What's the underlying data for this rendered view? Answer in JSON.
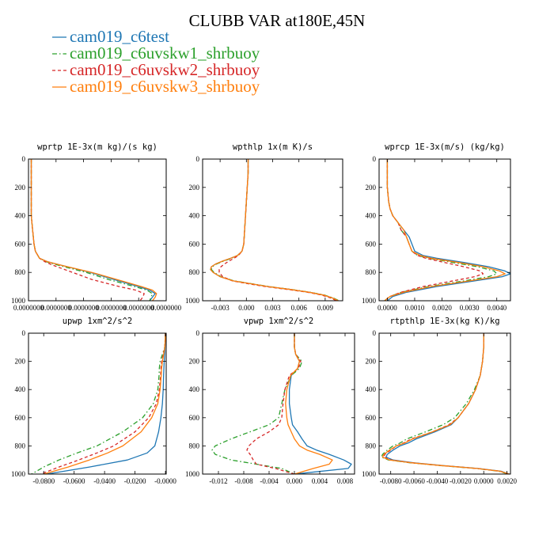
{
  "title": "CLUBB VAR at180E,45N",
  "legend": [
    {
      "label": "cam019_c6test",
      "color": "#1f77b4",
      "dash": "solid"
    },
    {
      "label": "cam019_c6uvskw1_shrbuoy",
      "color": "#2ca02c",
      "dash": "dashdot"
    },
    {
      "label": "cam019_c6uvskw2_shrbuoy",
      "color": "#d62728",
      "dash": "dash"
    },
    {
      "label": "cam019_c6uvskw3_shrbuoy",
      "color": "#ff7f0e",
      "dash": "solid"
    }
  ],
  "chart_data": [
    {
      "type": "line",
      "title": "wprtp  1E-3x(m kg)/(s kg)",
      "xlim": [
        0.0,
        1e-07
      ],
      "ylim": [
        1000,
        0
      ],
      "xticks": [
        {
          "v": 0.0,
          "label": "0.0000000"
        },
        {
          "v": 2e-08,
          "label": "0.0000000"
        },
        {
          "v": 4e-08,
          "label": "0.0000000"
        },
        {
          "v": 6e-08,
          "label": "0.0000000"
        },
        {
          "v": 8e-08,
          "label": "0.0000000"
        },
        {
          "v": 1e-07,
          "label": "0.0000000"
        }
      ],
      "yticks": [
        0,
        200,
        400,
        600,
        800,
        1000
      ],
      "y": [
        0,
        100,
        200,
        300,
        400,
        500,
        600,
        650,
        700,
        725,
        750,
        800,
        850,
        900,
        925,
        950,
        975,
        1000
      ],
      "series": [
        {
          "values": [
            2e-09,
            2e-09,
            2e-09,
            2e-09,
            2e-09,
            3e-09,
            4e-09,
            5e-09,
            8e-09,
            1.4e-08,
            2.4e-08,
            4.5e-08,
            6.2e-08,
            8e-08,
            8.8e-08,
            9.2e-08,
            9e-08,
            8.8e-08
          ]
        },
        {
          "values": [
            2e-09,
            2e-09,
            2e-09,
            2e-09,
            2e-09,
            3e-09,
            4e-09,
            5e-09,
            8e-09,
            1.3e-08,
            2.2e-08,
            4.2e-08,
            5.8e-08,
            7.7e-08,
            8.6e-08,
            9e-08,
            8.9e-08,
            8.8e-08
          ]
        },
        {
          "values": [
            2e-09,
            2e-09,
            2e-09,
            2e-09,
            2e-09,
            3e-09,
            4e-09,
            5e-09,
            8e-09,
            1.2e-08,
            1.8e-08,
            3.2e-08,
            4.6e-08,
            6.6e-08,
            7.8e-08,
            8.4e-08,
            8.3e-08,
            8.1e-08
          ]
        },
        {
          "values": [
            2e-09,
            2e-09,
            2e-09,
            2e-09,
            2e-09,
            3e-09,
            4e-09,
            5e-09,
            8e-09,
            1.4e-08,
            2.4e-08,
            4.6e-08,
            6.4e-08,
            8.2e-08,
            9e-08,
            9.3e-08,
            9.2e-08,
            9e-08
          ]
        }
      ]
    },
    {
      "type": "line",
      "title": "wpthlp  1x(m K)/s",
      "xlim": [
        -0.005,
        0.011
      ],
      "ylim": [
        1000,
        0
      ],
      "xticks": [
        {
          "v": -0.003,
          "label": "-0.003"
        },
        {
          "v": 0.0,
          "label": "0.000"
        },
        {
          "v": 0.003,
          "label": "0.003"
        },
        {
          "v": 0.006,
          "label": "0.006"
        },
        {
          "v": 0.009,
          "label": "0.009"
        }
      ],
      "yticks": [
        0,
        200,
        400,
        600,
        800,
        1000
      ],
      "y": [
        0,
        100,
        200,
        300,
        400,
        500,
        600,
        650,
        680,
        700,
        720,
        740,
        760,
        780,
        800,
        830,
        860,
        880,
        900,
        920,
        940,
        960,
        980,
        1000
      ],
      "series": [
        {
          "values": [
            0.0002,
            0.0002,
            0.0001,
            0.0,
            -0.0001,
            -0.0002,
            -0.0003,
            -0.0005,
            -0.001,
            -0.0018,
            -0.0027,
            -0.0035,
            -0.004,
            -0.0041,
            -0.0038,
            -0.003,
            -0.0015,
            0.0005,
            0.0025,
            0.005,
            0.0072,
            0.0088,
            0.0098,
            0.0105
          ]
        },
        {
          "values": [
            0.0002,
            0.0002,
            0.0001,
            0.0,
            -0.0001,
            -0.0002,
            -0.0003,
            -0.0005,
            -0.001,
            -0.0017,
            -0.0026,
            -0.0034,
            -0.0039,
            -0.004,
            -0.0037,
            -0.0029,
            -0.0014,
            0.0006,
            0.0026,
            0.0051,
            0.0073,
            0.0089,
            0.0099,
            0.0106
          ]
        },
        {
          "values": [
            0.0002,
            0.0002,
            0.0001,
            0.0,
            -0.0001,
            -0.0002,
            -0.0003,
            -0.0005,
            -0.0009,
            -0.0014,
            -0.002,
            -0.0025,
            -0.0029,
            -0.0031,
            -0.0031,
            -0.0027,
            -0.0016,
            0.0002,
            0.0022,
            0.0047,
            0.007,
            0.0086,
            0.0096,
            0.0103
          ]
        },
        {
          "values": [
            0.0002,
            0.0002,
            0.0001,
            0.0,
            -0.0001,
            -0.0002,
            -0.0003,
            -0.0005,
            -0.001,
            -0.0018,
            -0.0027,
            -0.0035,
            -0.004,
            -0.0041,
            -0.0038,
            -0.003,
            -0.0015,
            0.0005,
            0.0025,
            0.005,
            0.0072,
            0.0088,
            0.0098,
            0.0105
          ]
        }
      ]
    },
    {
      "type": "line",
      "title": "wprcp  1E-3x(m/s) (kg/kg)",
      "xlim": [
        -0.0003,
        0.0045
      ],
      "ylim": [
        1000,
        0
      ],
      "xticks": [
        {
          "v": 0.0,
          "label": "0.0000"
        },
        {
          "v": 0.001,
          "label": "0.0010"
        },
        {
          "v": 0.002,
          "label": "0.0020"
        },
        {
          "v": 0.003,
          "label": "0.0030"
        },
        {
          "v": 0.004,
          "label": "0.0040"
        }
      ],
      "yticks": [
        0,
        200,
        400,
        600,
        800,
        1000
      ],
      "y": [
        0,
        100,
        200,
        300,
        350,
        400,
        450,
        500,
        550,
        600,
        650,
        680,
        700,
        730,
        760,
        790,
        810,
        830,
        860,
        900,
        940,
        970,
        1000
      ],
      "series": [
        {
          "values": [
            0.0,
            0.0,
            0.0,
            5e-05,
            0.0001,
            0.0002,
            0.0004,
            0.0006,
            0.0008,
            0.0009,
            0.001,
            0.0013,
            0.0018,
            0.0028,
            0.0037,
            0.0043,
            0.0045,
            0.0042,
            0.0032,
            0.0018,
            0.0007,
            0.0002,
            0.0
          ]
        },
        {
          "values": [
            0.0,
            0.0,
            0.0,
            5e-05,
            0.0001,
            0.0002,
            0.0004,
            0.0005,
            0.0007,
            0.0008,
            0.0009,
            0.0011,
            0.0015,
            0.0024,
            0.0033,
            0.0039,
            0.004,
            0.0037,
            0.0028,
            0.0015,
            0.0005,
            0.0001,
            -0.0001
          ]
        },
        {
          "values": [
            0.0,
            0.0,
            0.0,
            5e-05,
            0.0001,
            0.0002,
            0.0004,
            0.0005,
            0.0007,
            0.0008,
            0.0009,
            0.0011,
            0.0014,
            0.0021,
            0.0028,
            0.0034,
            0.0035,
            0.0032,
            0.0024,
            0.0013,
            0.0005,
            0.0001,
            -0.0001
          ]
        },
        {
          "values": [
            0.0,
            0.0,
            0.0,
            5e-05,
            0.0001,
            0.0002,
            0.0004,
            0.0006,
            0.0007,
            0.0008,
            0.0009,
            0.0012,
            0.0016,
            0.0026,
            0.0035,
            0.0041,
            0.0043,
            0.004,
            0.003,
            0.0016,
            0.0006,
            0.0001,
            -0.0001
          ]
        }
      ]
    },
    {
      "type": "line",
      "title": "upwp  1xm^2/s^2",
      "xlim": [
        -0.09,
        0.0005
      ],
      "ylim": [
        1000,
        0
      ],
      "xticks": [
        {
          "v": -0.08,
          "label": "-0.0800"
        },
        {
          "v": -0.06,
          "label": "-0.0600"
        },
        {
          "v": -0.04,
          "label": "-0.0400"
        },
        {
          "v": -0.02,
          "label": "-0.0200"
        },
        {
          "v": 0.0,
          "label": "-0.0000"
        }
      ],
      "yticks": [
        0,
        200,
        400,
        600,
        800,
        1000
      ],
      "y": [
        0,
        100,
        200,
        250,
        300,
        400,
        500,
        600,
        700,
        800,
        850,
        900,
        950,
        1000
      ],
      "series": [
        {
          "values": [
            0.0,
            -0.0003,
            -0.0008,
            -0.001,
            -0.0012,
            -0.0015,
            -0.002,
            -0.003,
            -0.0045,
            -0.007,
            -0.012,
            -0.025,
            -0.05,
            -0.078
          ]
        },
        {
          "values": [
            0.0,
            -0.0005,
            -0.0035,
            -0.004,
            -0.0042,
            -0.005,
            -0.008,
            -0.015,
            -0.028,
            -0.045,
            -0.058,
            -0.07,
            -0.08,
            -0.088
          ]
        },
        {
          "values": [
            0.0,
            -0.0004,
            -0.0025,
            -0.003,
            -0.0032,
            -0.004,
            -0.006,
            -0.011,
            -0.02,
            -0.034,
            -0.045,
            -0.057,
            -0.07,
            -0.082
          ]
        },
        {
          "values": [
            0.0,
            -0.0004,
            -0.002,
            -0.0025,
            -0.0028,
            -0.0035,
            -0.005,
            -0.009,
            -0.016,
            -0.028,
            -0.038,
            -0.05,
            -0.064,
            -0.08
          ]
        }
      ]
    },
    {
      "type": "line",
      "title": "vpwp  1xm^2/s^2",
      "xlim": [
        -0.0145,
        0.0095
      ],
      "ylim": [
        1000,
        0
      ],
      "xticks": [
        {
          "v": -0.012,
          "label": "-0.012"
        },
        {
          "v": -0.008,
          "label": "-0.008"
        },
        {
          "v": -0.004,
          "label": "-0.004"
        },
        {
          "v": 0.0,
          "label": "0.000"
        },
        {
          "v": 0.004,
          "label": "0.004"
        },
        {
          "v": 0.008,
          "label": "0.008"
        }
      ],
      "yticks": [
        0,
        200,
        400,
        600,
        800,
        1000
      ],
      "y": [
        0,
        100,
        150,
        200,
        250,
        300,
        400,
        500,
        600,
        650,
        700,
        750,
        800,
        830,
        860,
        900,
        930,
        960,
        1000
      ],
      "series": [
        {
          "values": [
            0.0,
            0.0,
            0.0002,
            0.0008,
            0.0005,
            -0.0005,
            -0.0008,
            -0.0008,
            -0.0005,
            -0.0003,
            0.0005,
            0.0012,
            0.002,
            0.0035,
            0.0055,
            0.0078,
            0.009,
            0.0085,
            0.0
          ]
        },
        {
          "values": [
            0.0,
            0.0,
            0.0002,
            0.0012,
            0.0008,
            -0.0005,
            -0.0015,
            -0.002,
            -0.0025,
            -0.004,
            -0.007,
            -0.01,
            -0.0125,
            -0.013,
            -0.0125,
            -0.01,
            -0.006,
            -0.002,
            0.0
          ]
        },
        {
          "values": [
            0.0,
            0.0,
            0.0002,
            0.001,
            0.0006,
            -0.0008,
            -0.0015,
            -0.0018,
            -0.002,
            -0.0025,
            -0.004,
            -0.006,
            -0.0072,
            -0.0075,
            -0.007,
            -0.0065,
            -0.006,
            -0.003,
            0.0
          ]
        },
        {
          "values": [
            0.0,
            0.0,
            0.0002,
            0.0008,
            0.0005,
            -0.0006,
            -0.0012,
            -0.0014,
            -0.0012,
            -0.001,
            -0.0005,
            0.0,
            0.0008,
            0.002,
            0.004,
            0.006,
            0.0055,
            0.003,
            0.0
          ]
        }
      ]
    },
    {
      "type": "line",
      "title": "rtpthlp  1E-3x(kg K)/kg",
      "xlim": [
        -0.009,
        0.0023
      ],
      "ylim": [
        1000,
        0
      ],
      "xticks": [
        {
          "v": -0.008,
          "label": "-0.0080"
        },
        {
          "v": -0.006,
          "label": "-0.0060"
        },
        {
          "v": -0.004,
          "label": "-0.0040"
        },
        {
          "v": -0.002,
          "label": "-0.0020"
        },
        {
          "v": 0.0,
          "label": "0.0000"
        },
        {
          "v": 0.002,
          "label": "0.0020"
        }
      ],
      "yticks": [
        0,
        200,
        400,
        600,
        800,
        1000
      ],
      "y": [
        0,
        100,
        200,
        300,
        400,
        500,
        600,
        650,
        700,
        750,
        780,
        800,
        830,
        860,
        880,
        900,
        920,
        940,
        960,
        980,
        1000
      ],
      "series": [
        {
          "values": [
            0.0,
            0.0,
            -0.0001,
            -0.0003,
            -0.0007,
            -0.0013,
            -0.0022,
            -0.0028,
            -0.0042,
            -0.0058,
            -0.0065,
            -0.0072,
            -0.0078,
            -0.0083,
            -0.0084,
            -0.0078,
            -0.006,
            -0.0035,
            -0.0005,
            0.0015,
            0.0022
          ]
        },
        {
          "values": [
            0.0,
            0.0,
            -0.0001,
            -0.0003,
            -0.0008,
            -0.0015,
            -0.0025,
            -0.0035,
            -0.005,
            -0.0066,
            -0.0072,
            -0.0078,
            -0.0083,
            -0.0087,
            -0.0088,
            -0.0082,
            -0.0063,
            -0.0037,
            -0.0007,
            0.0013,
            0.0021
          ]
        },
        {
          "values": [
            0.0,
            0.0,
            -0.0001,
            -0.0003,
            -0.0007,
            -0.0013,
            -0.0022,
            -0.003,
            -0.0044,
            -0.0062,
            -0.0069,
            -0.0075,
            -0.008,
            -0.0085,
            -0.0086,
            -0.008,
            -0.0061,
            -0.0036,
            -0.0006,
            0.0014,
            0.0022
          ]
        },
        {
          "values": [
            0.0,
            0.0,
            -0.0001,
            -0.0003,
            -0.0007,
            -0.0013,
            -0.0022,
            -0.0029,
            -0.0044,
            -0.0061,
            -0.0068,
            -0.0075,
            -0.0081,
            -0.0086,
            -0.0087,
            -0.0081,
            -0.0062,
            -0.0036,
            -0.0006,
            0.0014,
            0.0022
          ]
        }
      ]
    }
  ]
}
